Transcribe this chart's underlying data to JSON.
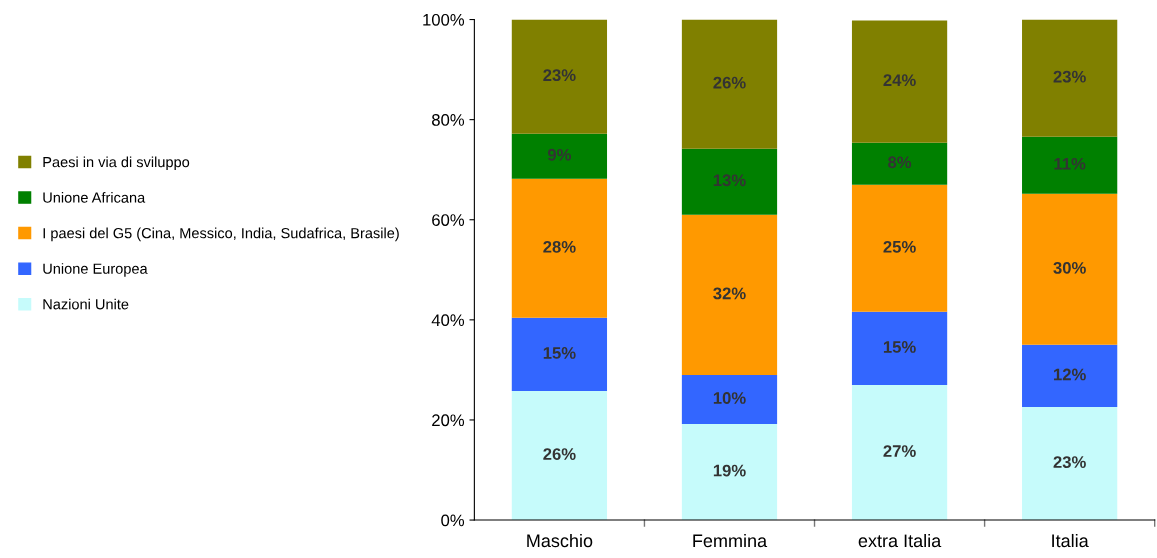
{
  "chart_data": {
    "type": "bar",
    "stacked": true,
    "categories": [
      "Maschio",
      "Femmina",
      "extra Italia",
      "Italia"
    ],
    "series": [
      {
        "name": "Nazioni Unite",
        "color": "#c6fbfb",
        "values": [
          25.8,
          19.2,
          27,
          22.6
        ],
        "value_labels": [
          "26%",
          "19%",
          "27%",
          "23%"
        ]
      },
      {
        "name": "Unione Europea",
        "color": "#3366ff",
        "values": [
          14.6,
          9.8,
          14.6,
          12.4
        ],
        "value_labels": [
          "15%",
          "10%",
          "15%",
          "12%"
        ]
      },
      {
        "name": "I paesi del G5 (Cina, Messico, India, Sudafrica, Brasile)",
        "color": "#ff9900",
        "values": [
          27.8,
          32,
          25.4,
          30.2
        ],
        "value_labels": [
          "28%",
          "32%",
          "25%",
          "30%"
        ]
      },
      {
        "name": "Unione Africana",
        "color": "#008000",
        "values": [
          9,
          13.2,
          8.4,
          11.4
        ],
        "value_labels": [
          "9%",
          "13%",
          "8%",
          "11%"
        ]
      },
      {
        "name": "Paesi in via di sviluppo",
        "color": "#808000",
        "values": [
          22.8,
          25.8,
          24.4,
          23.4
        ],
        "value_labels": [
          "23%",
          "26%",
          "24%",
          "23%"
        ]
      }
    ],
    "ylim": [
      0,
      100
    ],
    "yticks": [
      {
        "value": 0,
        "label": "0%"
      },
      {
        "value": 20,
        "label": "20%"
      },
      {
        "value": 40,
        "label": "40%"
      },
      {
        "value": 60,
        "label": "60%"
      },
      {
        "value": 80,
        "label": "80%"
      },
      {
        "value": 100,
        "label": "100%"
      }
    ],
    "grid": false,
    "legend": "left"
  }
}
